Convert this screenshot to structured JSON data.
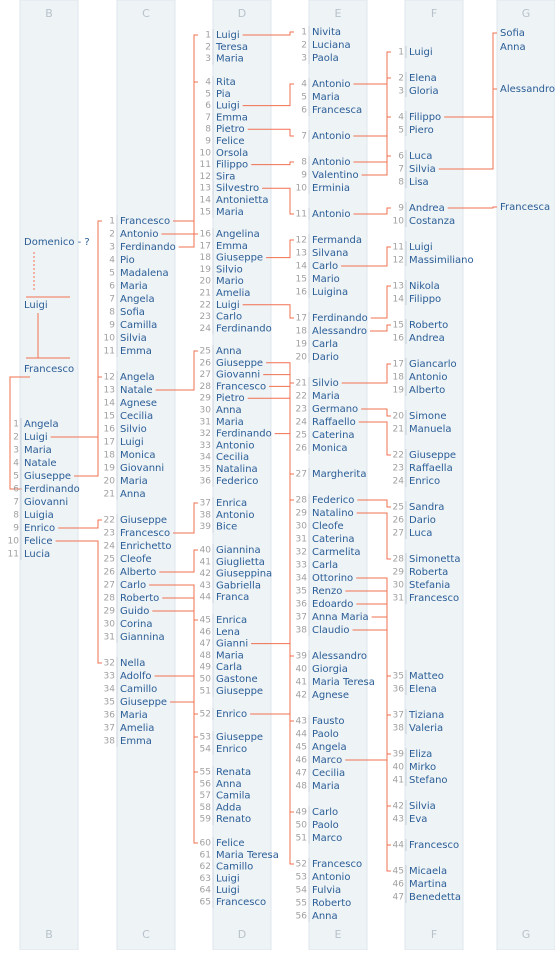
{
  "columns": [
    {
      "header": "B",
      "footer": "B",
      "groups": [
        [
          {
            "name": "Domenico - ?"
          }
        ],
        [
          {
            "name": "Luigi"
          }
        ],
        [
          {
            "name": "Francesco"
          }
        ],
        [
          {
            "num": 1,
            "name": "Angela"
          },
          {
            "num": 2,
            "name": "Luigi"
          },
          {
            "num": 3,
            "name": "Maria"
          },
          {
            "num": 4,
            "name": "Natale"
          },
          {
            "num": 5,
            "name": "Giuseppe"
          },
          {
            "num": 6,
            "name": "Ferdinando"
          },
          {
            "num": 7,
            "name": "Giovanni"
          },
          {
            "num": 8,
            "name": "Luigia"
          },
          {
            "num": 9,
            "name": "Enrico"
          },
          {
            "num": 10,
            "name": "Felice"
          },
          {
            "num": 11,
            "name": "Lucia"
          }
        ]
      ]
    },
    {
      "header": "C",
      "footer": "C",
      "groups": [
        [
          {
            "num": 1,
            "name": "Francesco"
          },
          {
            "num": 2,
            "name": "Antonio"
          },
          {
            "num": 3,
            "name": "Ferdinando"
          },
          {
            "num": 4,
            "name": "Pio"
          },
          {
            "num": 5,
            "name": "Madalena"
          },
          {
            "num": 6,
            "name": "Maria"
          },
          {
            "num": 7,
            "name": "Angela"
          },
          {
            "num": 8,
            "name": "Sofia"
          },
          {
            "num": 9,
            "name": "Camilla"
          },
          {
            "num": 10,
            "name": "Silvia"
          },
          {
            "num": 11,
            "name": "Emma"
          }
        ],
        [
          {
            "num": 12,
            "name": "Angela"
          },
          {
            "num": 13,
            "name": "Natale"
          },
          {
            "num": 14,
            "name": "Agnese"
          },
          {
            "num": 15,
            "name": "Cecilia"
          },
          {
            "num": 16,
            "name": "Silvio"
          },
          {
            "num": 17,
            "name": "Luigi"
          },
          {
            "num": 18,
            "name": "Monica"
          },
          {
            "num": 19,
            "name": "Giovanni"
          },
          {
            "num": 20,
            "name": "Maria"
          },
          {
            "num": 21,
            "name": "Anna"
          }
        ],
        [
          {
            "num": 22,
            "name": "Giuseppe"
          },
          {
            "num": 23,
            "name": "Francesco"
          },
          {
            "num": 24,
            "name": "Enrichetto"
          },
          {
            "num": 25,
            "name": "Cleofe"
          },
          {
            "num": 26,
            "name": "Alberto"
          },
          {
            "num": 27,
            "name": "Carlo"
          },
          {
            "num": 28,
            "name": "Roberto"
          },
          {
            "num": 29,
            "name": "Guido"
          },
          {
            "num": 30,
            "name": "Corina"
          },
          {
            "num": 31,
            "name": "Giannina"
          }
        ],
        [
          {
            "num": 32,
            "name": "Nella"
          },
          {
            "num": 33,
            "name": "Adolfo"
          },
          {
            "num": 34,
            "name": "Camillo"
          },
          {
            "num": 35,
            "name": "Giuseppe"
          },
          {
            "num": 36,
            "name": "Maria"
          },
          {
            "num": 37,
            "name": "Amelia"
          },
          {
            "num": 38,
            "name": "Emma"
          }
        ]
      ]
    },
    {
      "header": "D",
      "footer": "D",
      "groups": [
        [
          {
            "num": 1,
            "name": "Luigi"
          },
          {
            "num": 2,
            "name": "Teresa"
          },
          {
            "num": 3,
            "name": "Maria"
          }
        ],
        [
          {
            "num": 4,
            "name": "Rita"
          },
          {
            "num": 5,
            "name": "Pia"
          },
          {
            "num": 6,
            "name": "Luigi"
          },
          {
            "num": 7,
            "name": "Emma"
          },
          {
            "num": 8,
            "name": "Pietro"
          },
          {
            "num": 9,
            "name": "Felice"
          },
          {
            "num": 10,
            "name": "Orsola"
          },
          {
            "num": 11,
            "name": "Filippo"
          },
          {
            "num": 12,
            "name": "Sira"
          },
          {
            "num": 13,
            "name": "Silvestro"
          },
          {
            "num": 14,
            "name": "Antonietta"
          },
          {
            "num": 15,
            "name": "Maria"
          }
        ],
        [
          {
            "num": 16,
            "name": "Angelina"
          },
          {
            "num": 17,
            "name": "Emma"
          },
          {
            "num": 18,
            "name": "Giuseppe"
          },
          {
            "num": 19,
            "name": "Silvio"
          },
          {
            "num": 20,
            "name": "Mario"
          },
          {
            "num": 21,
            "name": "Amelia"
          },
          {
            "num": 22,
            "name": "Luigi"
          },
          {
            "num": 23,
            "name": "Carlo"
          },
          {
            "num": 24,
            "name": "Ferdinando"
          }
        ],
        [
          {
            "num": 25,
            "name": "Anna"
          },
          {
            "num": 26,
            "name": "Giuseppe"
          },
          {
            "num": 27,
            "name": "Giovanni"
          },
          {
            "num": 28,
            "name": "Francesco"
          },
          {
            "num": 29,
            "name": "Pietro"
          },
          {
            "num": 30,
            "name": "Anna"
          },
          {
            "num": 31,
            "name": "Maria"
          },
          {
            "num": 32,
            "name": "Ferdinando"
          },
          {
            "num": 33,
            "name": "Antonio"
          },
          {
            "num": 34,
            "name": "Cecilia"
          },
          {
            "num": 35,
            "name": "Natalina"
          },
          {
            "num": 36,
            "name": "Federico"
          }
        ],
        [
          {
            "num": 37,
            "name": "Enrica"
          },
          {
            "num": 38,
            "name": "Antonio"
          },
          {
            "num": 39,
            "name": "Bice"
          }
        ],
        [
          {
            "num": 40,
            "name": "Giannina"
          },
          {
            "num": 41,
            "name": "Giuglietta"
          },
          {
            "num": 42,
            "name": "Giuseppina"
          },
          {
            "num": 43,
            "name": "Gabriella"
          },
          {
            "num": 44,
            "name": "Franca"
          }
        ],
        [
          {
            "num": 45,
            "name": "Enrica"
          },
          {
            "num": 46,
            "name": "Lena"
          },
          {
            "num": 47,
            "name": "Gianni"
          },
          {
            "num": 48,
            "name": "Maria"
          },
          {
            "num": 49,
            "name": "Carla"
          },
          {
            "num": 50,
            "name": "Gastone"
          },
          {
            "num": 51,
            "name": "Giuseppe"
          }
        ],
        [
          {
            "num": 52,
            "name": "Enrico"
          }
        ],
        [
          {
            "num": 53,
            "name": "Giuseppe"
          },
          {
            "num": 54,
            "name": "Enrico"
          }
        ],
        [
          {
            "num": 55,
            "name": "Renata"
          },
          {
            "num": 56,
            "name": "Anna"
          },
          {
            "num": 57,
            "name": "Camila"
          },
          {
            "num": 58,
            "name": "Adda"
          },
          {
            "num": 59,
            "name": "Renato"
          }
        ],
        [
          {
            "num": 60,
            "name": "Felice"
          },
          {
            "num": 61,
            "name": "Maria Teresa"
          },
          {
            "num": 62,
            "name": "Camillo"
          },
          {
            "num": 63,
            "name": "Luigi"
          },
          {
            "num": 64,
            "name": "Luigi"
          },
          {
            "num": 65,
            "name": "Francesco"
          }
        ]
      ]
    },
    {
      "header": "E",
      "footer": "E",
      "groups": [
        [
          {
            "num": 1,
            "name": "Nivita"
          },
          {
            "num": 2,
            "name": "Luciana"
          },
          {
            "num": 3,
            "name": "Paola"
          }
        ],
        [
          {
            "num": 4,
            "name": "Antonio"
          },
          {
            "num": 5,
            "name": "Maria"
          },
          {
            "num": 6,
            "name": "Francesca"
          }
        ],
        [
          {
            "num": 7,
            "name": "Antonio"
          }
        ],
        [
          {
            "num": 8,
            "name": "Antonio"
          },
          {
            "num": 9,
            "name": "Valentino"
          },
          {
            "num": 10,
            "name": "Erminia"
          }
        ],
        [
          {
            "num": 11,
            "name": "Antonio"
          }
        ],
        [
          {
            "num": 12,
            "name": "Fermanda"
          },
          {
            "num": 13,
            "name": "Silvana"
          },
          {
            "num": 14,
            "name": "Carlo"
          },
          {
            "num": 15,
            "name": "Mario"
          },
          {
            "num": 16,
            "name": "Luigina"
          }
        ],
        [
          {
            "num": 17,
            "name": "Ferdinando"
          },
          {
            "num": 18,
            "name": "Alessandro"
          },
          {
            "num": 19,
            "name": "Carla"
          },
          {
            "num": 20,
            "name": "Dario"
          }
        ],
        [
          {
            "num": 21,
            "name": "Silvio"
          },
          {
            "num": 22,
            "name": "Maria"
          },
          {
            "num": 23,
            "name": "Germano"
          },
          {
            "num": 24,
            "name": "Raffaello"
          },
          {
            "num": 25,
            "name": "Caterina"
          },
          {
            "num": 26,
            "name": "Monica"
          }
        ],
        [
          {
            "num": 27,
            "name": "Margherita"
          }
        ],
        [
          {
            "num": 28,
            "name": "Federico"
          },
          {
            "num": 29,
            "name": "Natalino"
          },
          {
            "num": 30,
            "name": "Cleofe"
          },
          {
            "num": 31,
            "name": "Caterina"
          },
          {
            "num": 32,
            "name": "Carmelita"
          },
          {
            "num": 33,
            "name": "Carla"
          },
          {
            "num": 34,
            "name": "Ottorino"
          },
          {
            "num": 35,
            "name": "Renzo"
          },
          {
            "num": 36,
            "name": "Edoardo"
          },
          {
            "num": 37,
            "name": "Anna Maria"
          },
          {
            "num": 38,
            "name": "Claudio"
          }
        ],
        [
          {
            "num": 39,
            "name": "Alessandro"
          },
          {
            "num": 40,
            "name": "Giorgia"
          },
          {
            "num": 41,
            "name": "Maria Teresa"
          },
          {
            "num": 42,
            "name": "Agnese"
          }
        ],
        [
          {
            "num": 43,
            "name": "Fausto"
          },
          {
            "num": 44,
            "name": "Paolo"
          },
          {
            "num": 45,
            "name": "Angela"
          },
          {
            "num": 46,
            "name": "Marco"
          },
          {
            "num": 47,
            "name": "Cecilia"
          },
          {
            "num": 48,
            "name": "Maria"
          }
        ],
        [
          {
            "num": 49,
            "name": "Carlo"
          },
          {
            "num": 50,
            "name": "Paolo"
          },
          {
            "num": 51,
            "name": "Marco"
          }
        ],
        [
          {
            "num": 52,
            "name": "Francesco"
          },
          {
            "num": 53,
            "name": "Antonio"
          },
          {
            "num": 54,
            "name": "Fulvia"
          },
          {
            "num": 55,
            "name": "Roberto"
          },
          {
            "num": 56,
            "name": "Anna"
          }
        ]
      ]
    },
    {
      "header": "F",
      "footer": "F",
      "groups": [
        [
          {
            "num": 1,
            "name": "Luigi"
          }
        ],
        [
          {
            "num": 2,
            "name": "Elena"
          },
          {
            "num": 3,
            "name": "Gloria"
          }
        ],
        [
          {
            "num": 4,
            "name": "Filippo"
          },
          {
            "num": 5,
            "name": "Piero"
          }
        ],
        [
          {
            "num": 6,
            "name": "Luca"
          },
          {
            "num": 7,
            "name": "Silvia"
          },
          {
            "num": 8,
            "name": "Lisa"
          }
        ],
        [
          {
            "num": 9,
            "name": "Andrea"
          },
          {
            "num": 10,
            "name": "Costanza"
          }
        ],
        [
          {
            "num": 11,
            "name": "Luigi"
          },
          {
            "num": 12,
            "name": "Massimiliano"
          }
        ],
        [
          {
            "num": 13,
            "name": "Nikola"
          },
          {
            "num": 14,
            "name": "Filippo"
          }
        ],
        [
          {
            "num": 15,
            "name": "Roberto"
          },
          {
            "num": 16,
            "name": "Andrea"
          }
        ],
        [
          {
            "num": 17,
            "name": "Giancarlo"
          },
          {
            "num": 18,
            "name": "Antonio"
          },
          {
            "num": 19,
            "name": "Alberto"
          }
        ],
        [
          {
            "num": 20,
            "name": "Simone"
          },
          {
            "num": 21,
            "name": "Manuela"
          }
        ],
        [
          {
            "num": 22,
            "name": "Giuseppe"
          },
          {
            "num": 23,
            "name": "Raffaella"
          },
          {
            "num": 24,
            "name": "Enrico"
          }
        ],
        [
          {
            "num": 25,
            "name": "Sandra"
          },
          {
            "num": 26,
            "name": "Dario"
          },
          {
            "num": 27,
            "name": "Luca"
          }
        ],
        [
          {
            "num": 28,
            "name": "Simonetta"
          },
          {
            "num": 29,
            "name": "Roberta"
          },
          {
            "num": 30,
            "name": "Stefania"
          },
          {
            "num": 31,
            "name": "Francesco"
          }
        ],
        [
          {
            "num": 35,
            "name": "Matteo"
          },
          {
            "num": 36,
            "name": "Elena"
          }
        ],
        [
          {
            "num": 37,
            "name": "Tiziana"
          },
          {
            "num": 38,
            "name": "Valeria"
          }
        ],
        [
          {
            "num": 39,
            "name": "Eliza"
          },
          {
            "num": 40,
            "name": "Mirko"
          },
          {
            "num": 41,
            "name": "Stefano"
          }
        ],
        [
          {
            "num": 42,
            "name": "Silvia"
          },
          {
            "num": 43,
            "name": "Eva"
          }
        ],
        [
          {
            "num": 44,
            "name": "Francesco"
          }
        ],
        [
          {
            "num": 45,
            "name": "Micaela"
          },
          {
            "num": 46,
            "name": "Martina"
          },
          {
            "num": 47,
            "name": "Benedetta"
          }
        ]
      ]
    },
    {
      "header": "G",
      "footer": "G",
      "groups": [
        [
          {
            "name": "Sofia"
          },
          {
            "name": "Anna"
          }
        ],
        [
          {
            "name": "Alessandro"
          }
        ],
        [
          {
            "name": "Francesca"
          }
        ]
      ]
    }
  ]
}
